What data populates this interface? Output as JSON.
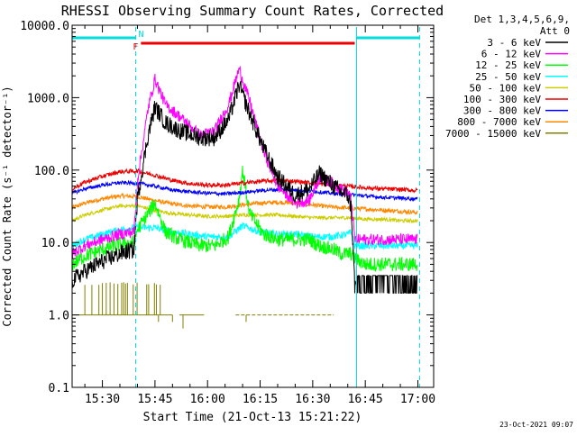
{
  "chart_data": {
    "type": "line",
    "title": "RHESSI Observing Summary Count Rates, Corrected",
    "xlabel": "Start Time (21-Oct-13 15:21:22)",
    "ylabel": "Corrected Count Rate (s⁻¹ detector⁻¹)",
    "y_scale": "log",
    "ylim": [
      0.1,
      10000
    ],
    "y_ticks": [
      0.1,
      1,
      10,
      100,
      1000,
      10000
    ],
    "y_tick_labels": [
      "0.1",
      "1.0",
      "10.0",
      "100.0",
      "1000.0",
      "10000.0"
    ],
    "x_range_minutes": [
      "15:21:22",
      "17:04:30"
    ],
    "x_tick_labels": [
      "15:30",
      "15:45",
      "16:00",
      "16:15",
      "16:30",
      "16:45",
      "17:00"
    ],
    "x_ticks": [
      "15:30",
      "15:45",
      "16:00",
      "16:15",
      "16:30",
      "16:45",
      "17:00"
    ],
    "detector_info": "Det 1,3,4,5,6,9,",
    "attenuator_info": "Att 0",
    "timestamp": "23-Oct-2021 09:07",
    "flags": [
      {
        "label": "N",
        "color": "#00dddd",
        "segments": [
          [
            "15:21:22",
            "15:39:30"
          ],
          [
            "16:42:30",
            "17:00:30"
          ]
        ]
      },
      {
        "label": "F",
        "color": "#ee0000",
        "segments": [
          [
            "15:41:00",
            "16:42:00"
          ]
        ]
      }
    ],
    "vertical_lines": [
      {
        "time": "15:21:22",
        "color": "#00dddd",
        "style": "solid"
      },
      {
        "time": "15:39:30",
        "color": "#00dddd",
        "style": "dashed"
      },
      {
        "time": "16:42:30",
        "color": "#00dddd",
        "style": "solid"
      },
      {
        "time": "17:00:30",
        "color": "#00dddd",
        "style": "dashed"
      }
    ],
    "series": [
      {
        "name": "3 - 6 keV",
        "color": "#000000",
        "noise": 0.12,
        "x": [
          "15:21:22",
          "15:25",
          "15:30",
          "15:35",
          "15:39",
          "15:40",
          "15:43",
          "15:45",
          "15:48",
          "15:52",
          "15:58",
          "16:02",
          "16:06",
          "16:09",
          "16:12",
          "16:16",
          "16:20",
          "16:25",
          "16:29",
          "16:32",
          "16:36",
          "16:38",
          "16:40",
          "16:41",
          "16:42",
          "16:45",
          "16:50",
          "16:55",
          "17:00"
        ],
        "y": [
          3,
          4,
          5.5,
          7,
          8,
          40,
          300,
          750,
          450,
          350,
          280,
          280,
          500,
          1500,
          600,
          200,
          80,
          45,
          55,
          90,
          60,
          50,
          45,
          30,
          2.5,
          2.5,
          2.5,
          2.5,
          2.5
        ]
      },
      {
        "name": "6 - 12 keV",
        "color": "#ff00ff",
        "noise": 0.08,
        "x": [
          "15:21:22",
          "15:25",
          "15:30",
          "15:35",
          "15:39",
          "15:40",
          "15:43",
          "15:45",
          "15:48",
          "15:52",
          "15:58",
          "16:02",
          "16:06",
          "16:09",
          "16:12",
          "16:16",
          "16:20",
          "16:25",
          "16:29",
          "16:32",
          "16:36",
          "16:38",
          "16:40",
          "16:41",
          "16:42",
          "16:45",
          "16:50",
          "16:55",
          "17:00"
        ],
        "y": [
          7,
          9,
          11,
          13,
          14,
          70,
          700,
          1800,
          800,
          550,
          300,
          350,
          800,
          2500,
          900,
          180,
          60,
          35,
          38,
          80,
          65,
          55,
          50,
          38,
          11,
          11,
          11,
          11,
          11
        ]
      },
      {
        "name": "12 - 25 keV",
        "color": "#00ff00",
        "noise": 0.1,
        "x": [
          "15:21:22",
          "15:25",
          "15:30",
          "15:35",
          "15:39",
          "15:40",
          "15:43",
          "15:45",
          "15:48",
          "15:52",
          "15:58",
          "16:02",
          "16:06",
          "16:09",
          "16:10",
          "16:12",
          "16:16",
          "16:20",
          "16:25",
          "16:29",
          "16:32",
          "16:36",
          "16:38",
          "16:40",
          "16:41",
          "16:42",
          "16:45",
          "16:50",
          "16:55",
          "17:00"
        ],
        "y": [
          5,
          6.5,
          8,
          9.5,
          10,
          15,
          25,
          35,
          14,
          11,
          9,
          9,
          12,
          40,
          100,
          25,
          13,
          11,
          11,
          11,
          9,
          8,
          7,
          7,
          7,
          6,
          5,
          5,
          5,
          5
        ]
      },
      {
        "name": "25 - 50 keV",
        "color": "#00ffff",
        "noise": 0.05,
        "x": [
          "15:21:22",
          "15:25",
          "15:30",
          "15:35",
          "15:39",
          "15:45",
          "15:50",
          "15:55",
          "16:00",
          "16:06",
          "16:10",
          "16:15",
          "16:20",
          "16:25",
          "16:30",
          "16:35",
          "16:40",
          "16:41",
          "16:42",
          "16:45",
          "16:50",
          "16:55",
          "17:00"
        ],
        "y": [
          9,
          11,
          13,
          15,
          16,
          16,
          14,
          13,
          12,
          12,
          17,
          14,
          13,
          13,
          12,
          12,
          13,
          14,
          9,
          9,
          9,
          9,
          9
        ]
      },
      {
        "name": "50 - 100 keV",
        "color": "#cccc00",
        "noise": 0.025,
        "x": [
          "15:21:22",
          "15:25",
          "15:30",
          "15:35",
          "15:40",
          "15:45",
          "15:50",
          "15:55",
          "16:00",
          "16:05",
          "16:10",
          "16:15",
          "16:20",
          "16:25",
          "16:30",
          "16:35",
          "16:40",
          "16:45",
          "16:50",
          "16:55",
          "17:00"
        ],
        "y": [
          20,
          24,
          28,
          32,
          32,
          28,
          25,
          24,
          23,
          23,
          24,
          24,
          24,
          23,
          22,
          22,
          22,
          21,
          21,
          20,
          20
        ]
      },
      {
        "name": "100 - 300 keV",
        "color": "#ee0000",
        "noise": 0.03,
        "x": [
          "15:21:22",
          "15:25",
          "15:30",
          "15:35",
          "15:40",
          "15:45",
          "15:50",
          "15:55",
          "16:00",
          "16:05",
          "16:10",
          "16:15",
          "16:20",
          "16:25",
          "16:30",
          "16:35",
          "16:40",
          "16:45",
          "16:50",
          "16:55",
          "17:00"
        ],
        "y": [
          55,
          68,
          82,
          95,
          97,
          85,
          72,
          65,
          62,
          62,
          66,
          70,
          72,
          70,
          66,
          62,
          60,
          57,
          55,
          54,
          52
        ]
      },
      {
        "name": "300 - 800 keV",
        "color": "#0000ff",
        "noise": 0.025,
        "x": [
          "15:21:22",
          "15:25",
          "15:30",
          "15:35",
          "15:40",
          "15:45",
          "15:50",
          "15:55",
          "16:00",
          "16:05",
          "16:10",
          "16:15",
          "16:20",
          "16:25",
          "16:30",
          "16:35",
          "16:40",
          "16:45",
          "16:50",
          "16:55",
          "17:00"
        ],
        "y": [
          48,
          55,
          62,
          67,
          66,
          60,
          53,
          50,
          48,
          47,
          49,
          52,
          54,
          53,
          51,
          48,
          46,
          44,
          42,
          41,
          40
        ]
      },
      {
        "name": "800 - 7000 keV",
        "color": "#ff8800",
        "noise": 0.03,
        "x": [
          "15:21:22",
          "15:25",
          "15:30",
          "15:35",
          "15:40",
          "15:45",
          "15:50",
          "15:55",
          "16:00",
          "16:05",
          "16:10",
          "16:15",
          "16:20",
          "16:25",
          "16:30",
          "16:35",
          "16:40",
          "16:45",
          "16:50",
          "16:55",
          "17:00"
        ],
        "y": [
          30,
          35,
          40,
          44,
          43,
          38,
          34,
          32,
          31,
          31,
          33,
          35,
          36,
          35,
          33,
          31,
          30,
          29,
          28,
          27,
          26
        ]
      },
      {
        "name": "7000 - 15000 keV",
        "color": "#808000",
        "noise": 0,
        "x": [],
        "y": []
      }
    ]
  }
}
